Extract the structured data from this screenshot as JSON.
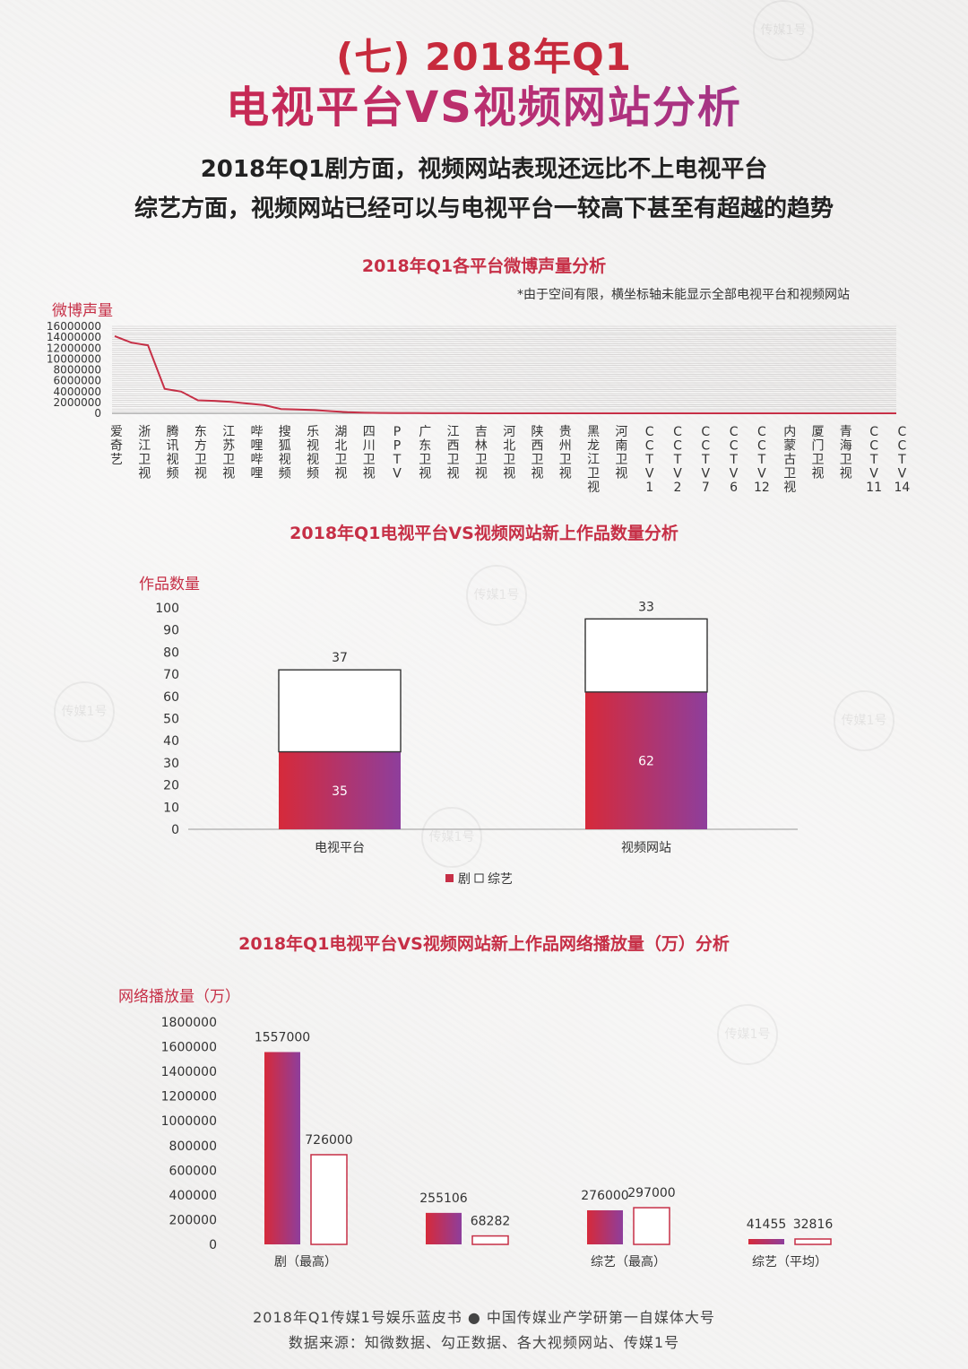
{
  "header": {
    "title_line1": "(七) 2018年Q1",
    "title_line2": "电视平台VS视频网站分析",
    "subtitle_line1": "2018年Q1剧方面，视频网站表现还远比不上电视平台",
    "subtitle_line2": "综艺方面，视频网站已经可以与电视平台一较高下甚至有超越的趋势"
  },
  "colors": {
    "accent_red": "#c62f46",
    "gradient_start": "#d62a3a",
    "gradient_end": "#8e3e9c"
  },
  "watermark_text": "传媒1号",
  "chart_data": [
    {
      "type": "line",
      "title": "2018年Q1各平台微博声量分析",
      "note": "*由于空间有限，横坐标轴未能显示全部电视平台和视频网站",
      "ylabel": "微博声量",
      "ylim": [
        0,
        16000000
      ],
      "yticks": [
        "16000000",
        "14000000",
        "12000000",
        "10000000",
        "8000000",
        "6000000",
        "4000000",
        "2000000",
        "0"
      ],
      "grid": true,
      "x_tick_labels": [
        "爱奇艺",
        "浙江卫视",
        "腾讯视频",
        "东方卫视",
        "江苏卫视",
        "哔哩哔哩",
        "搜狐视频",
        "乐视视频",
        "湖北卫视",
        "四川卫视",
        "PPTV",
        "广东卫视",
        "江西卫视",
        "吉林卫视",
        "河北卫视",
        "陕西卫视",
        "贵州卫视",
        "黑龙江卫视",
        "河南卫视",
        "CCTV1",
        "CCTV2",
        "CCTV7",
        "CCTV6",
        "CCTV12",
        "内蒙古卫视",
        "厦门卫视",
        "青海卫视",
        "CCTV11",
        "CCTV14"
      ],
      "values": [
        14200000,
        13000000,
        12500000,
        4500000,
        4000000,
        2400000,
        2300000,
        2100000,
        1800000,
        1500000,
        800000,
        700000,
        600000,
        400000,
        200000,
        100000,
        60000,
        40000,
        30000,
        20000,
        15000,
        10000,
        8000,
        6000,
        5000,
        4000,
        3000,
        2000,
        1000,
        800,
        600,
        500,
        400,
        300,
        200,
        150,
        100,
        80,
        60,
        50,
        40,
        30,
        20,
        10,
        5,
        2,
        1,
        0
      ]
    },
    {
      "type": "bar",
      "title": "2018年Q1电视平台VS视频网站新上作品数量分析",
      "ylabel": "作品数量",
      "ylim": [
        0,
        100
      ],
      "yticks": [
        "100",
        "90",
        "80",
        "70",
        "60",
        "50",
        "40",
        "30",
        "20",
        "10",
        "0"
      ],
      "categories": [
        "电视平台",
        "视频网站"
      ],
      "stacked": true,
      "series": [
        {
          "name": "剧",
          "values": [
            35,
            62
          ],
          "labels": [
            "35",
            "62"
          ]
        },
        {
          "name": "综艺",
          "values": [
            37,
            33
          ],
          "labels": [
            "37",
            "33"
          ]
        }
      ],
      "legend": {
        "position": "bottom",
        "text": "■ 剧 □ 综艺"
      }
    },
    {
      "type": "bar",
      "title": "2018年Q1电视平台VS视频网站新上作品网络播放量（万）分析",
      "ylabel": "网络播放量（万）",
      "ylim": [
        0,
        1800000
      ],
      "yticks": [
        "1800000",
        "1600000",
        "1400000",
        "1200000",
        "1000000",
        "800000",
        "600000",
        "400000",
        "200000",
        "0"
      ],
      "categories": [
        "剧（最高）",
        "",
        "综艺（最高）",
        "综艺（平均）"
      ],
      "series": [
        {
          "values": [
            1557000,
            255106,
            276000,
            41455
          ],
          "labels": [
            "1557000",
            "255106",
            "276000",
            "41455"
          ]
        },
        {
          "values": [
            726000,
            68282,
            297000,
            32816
          ],
          "labels": [
            "726000",
            "68282",
            "297000",
            "32816"
          ]
        }
      ]
    }
  ],
  "footer": {
    "line1": "2018年Q1传媒1号娱乐蓝皮书 ● 中国传媒业产学研第一自媒体大号",
    "line2": "数据来源：知微数据、勾正数据、各大视频网站、传媒1号"
  }
}
